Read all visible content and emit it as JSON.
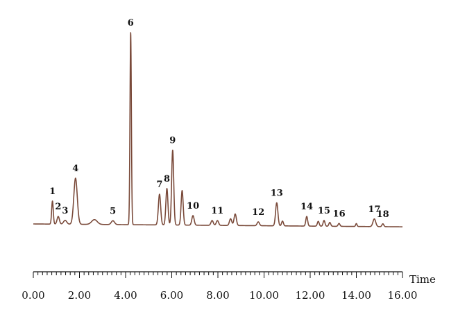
{
  "chart_data": {
    "type": "line",
    "title": "",
    "xlabel": "Time",
    "ylabel": "",
    "xlim": [
      0,
      16
    ],
    "x_major_ticks": [
      0,
      2,
      4,
      6,
      8,
      10,
      12,
      14,
      16
    ],
    "x_tick_labels": [
      "0.00",
      "2.00",
      "4.00",
      "6.00",
      "8.00",
      "10.00",
      "12.00",
      "14.00",
      "16.00"
    ],
    "x_minor_step": 0.2,
    "y_axis_visible": false,
    "grid": false,
    "ylim": [
      0,
      100
    ],
    "baseline_start": [
      0,
      0
    ],
    "baseline_end": [
      16,
      -1.5
    ],
    "line_color": "#7a4a3a",
    "series": [
      {
        "peaks": [
          {
            "label": "1",
            "x": 0.83,
            "y": 12,
            "w": 0.035
          },
          {
            "label": "2",
            "x": 1.08,
            "y": 4,
            "w": 0.05
          },
          {
            "label": "3",
            "x": 1.38,
            "y": 2,
            "w": 0.07
          },
          {
            "label": "4",
            "x": 1.83,
            "y": 24,
            "w": 0.075
          },
          {
            "label": "",
            "x": 2.65,
            "y": 2.5,
            "w": 0.12
          },
          {
            "label": "5",
            "x": 3.45,
            "y": 2,
            "w": 0.07
          },
          {
            "label": "6",
            "x": 4.22,
            "y": 100,
            "w": 0.03
          },
          {
            "label": "7",
            "x": 5.47,
            "y": 16,
            "w": 0.05
          },
          {
            "label": "8",
            "x": 5.79,
            "y": 19,
            "w": 0.045
          },
          {
            "label": "9",
            "x": 6.04,
            "y": 39,
            "w": 0.045
          },
          {
            "label": "",
            "x": 6.45,
            "y": 18,
            "w": 0.045
          },
          {
            "label": "10",
            "x": 6.92,
            "y": 5,
            "w": 0.05
          },
          {
            "label": "",
            "x": 7.75,
            "y": 2.5,
            "w": 0.05
          },
          {
            "label": "11",
            "x": 7.98,
            "y": 2.5,
            "w": 0.05
          },
          {
            "label": "",
            "x": 8.55,
            "y": 3.5,
            "w": 0.05
          },
          {
            "label": "",
            "x": 8.75,
            "y": 6,
            "w": 0.05
          },
          {
            "label": "12",
            "x": 9.75,
            "y": 2,
            "w": 0.05
          },
          {
            "label": "13",
            "x": 10.55,
            "y": 12,
            "w": 0.05
          },
          {
            "label": "",
            "x": 10.8,
            "y": 2.5,
            "w": 0.04
          },
          {
            "label": "14",
            "x": 11.85,
            "y": 5,
            "w": 0.04
          },
          {
            "label": "",
            "x": 12.35,
            "y": 2.5,
            "w": 0.04
          },
          {
            "label": "15",
            "x": 12.6,
            "y": 3,
            "w": 0.04
          },
          {
            "label": "",
            "x": 12.85,
            "y": 2,
            "w": 0.04
          },
          {
            "label": "16",
            "x": 13.25,
            "y": 1.5,
            "w": 0.04
          },
          {
            "label": "",
            "x": 14.0,
            "y": 1.5,
            "w": 0.03
          },
          {
            "label": "17",
            "x": 14.78,
            "y": 4,
            "w": 0.06
          },
          {
            "label": "18",
            "x": 15.15,
            "y": 1.5,
            "w": 0.04
          }
        ]
      }
    ]
  }
}
